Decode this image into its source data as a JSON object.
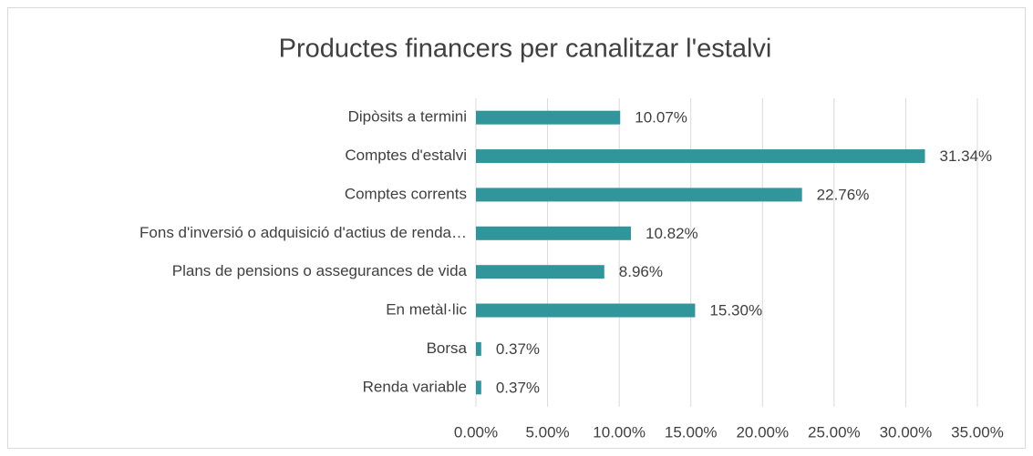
{
  "chart_data": {
    "type": "bar",
    "orientation": "horizontal",
    "title": "Productes financers per canalitzar l'estalvi",
    "categories": [
      "Dipòsits a termini",
      "Comptes d'estalvi",
      "Comptes corrents",
      "Fons d'inversió o adquisició d'actius de renda…",
      "Plans de pensions o assegurances de vida",
      "En metàl·lic",
      "Borsa",
      "Renda variable"
    ],
    "values": [
      10.07,
      31.34,
      22.76,
      10.82,
      8.96,
      15.3,
      0.37,
      0.37
    ],
    "value_labels": [
      "10.07%",
      "31.34%",
      "22.76%",
      "10.82%",
      "8.96%",
      "15.30%",
      "0.37%",
      "0.37%"
    ],
    "color": "#31969b",
    "xlim": [
      0,
      35
    ],
    "xticks": [
      {
        "value": 0,
        "label": "0.00%"
      },
      {
        "value": 5,
        "label": "5.00%"
      },
      {
        "value": 10,
        "label": "10.00%"
      },
      {
        "value": 15,
        "label": "15.00%"
      },
      {
        "value": 20,
        "label": "20.00%"
      },
      {
        "value": 25,
        "label": "25.00%"
      },
      {
        "value": 30,
        "label": "30.00%"
      },
      {
        "value": 35,
        "label": "35.00%"
      }
    ],
    "grid": true
  }
}
